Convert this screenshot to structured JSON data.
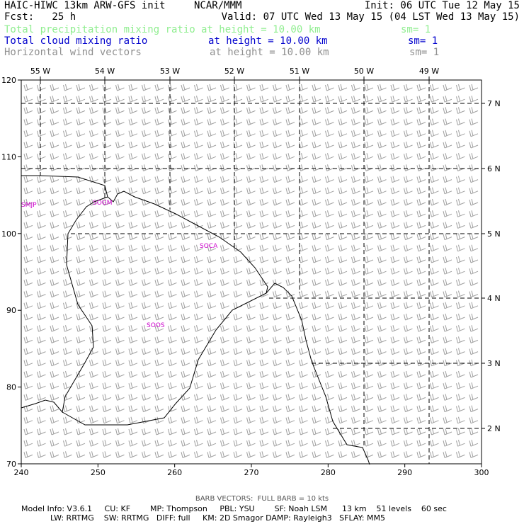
{
  "header": {
    "title": "HAIC-HIWC 13km ARW-GFS init",
    "org": "NCAR/MMM",
    "init": "Init: 06 UTC Tue 12 May 15",
    "fcst": "Fcst:   25 h",
    "valid": "Valid: 07 UTC Wed 13 May 15 (04 LST Wed 13 May 15)",
    "fields": [
      {
        "name": "Total precipitation mixing ratio",
        "level": "at height = 10.00 km",
        "smooth": "sm= 1",
        "color": "#90ee90"
      },
      {
        "name": "Total cloud mixing ratio",
        "level": "at height = 10.00 km",
        "smooth": "sm= 1",
        "color": "#0000cd"
      },
      {
        "name": "Horizontal wind vectors",
        "level": "at height = 10.00 km",
        "smooth": "sm= 1",
        "color": "#909090"
      }
    ]
  },
  "map": {
    "x_ticks": [
      "240",
      "250",
      "260",
      "270",
      "280",
      "290",
      "300"
    ],
    "y_ticks": [
      "70",
      "80",
      "90",
      "100",
      "110",
      "120"
    ],
    "lon_labels": [
      "55 W",
      "54 W",
      "53 W",
      "52 W",
      "51 W",
      "50 W",
      "49 W"
    ],
    "lat_labels": [
      "7 N",
      "6 N",
      "5 N",
      "4 N",
      "3 N",
      "2 N"
    ],
    "stations": [
      "SMJP",
      "SOGM",
      "SOCA",
      "SOOS"
    ],
    "coast_color": "#000000",
    "barb_color": "#a0a0a0",
    "station_color": "#cc00cc",
    "grid_color": "#000000"
  },
  "footer": {
    "barb_note": "BARB VECTORS:  FULL BARB = 10 kts",
    "model_line1": "Model Info: V3.6.1     CU: KF        MP: Thompson     PBL: YSU        SF: Noah LSM      13 km    51 levels    60 sec",
    "model_line2": "LW: RRTMG    SW: RRTMG   DIFF: full     KM: 2D Smagor DAMP: Rayleigh3   SFLAY: MM5"
  }
}
